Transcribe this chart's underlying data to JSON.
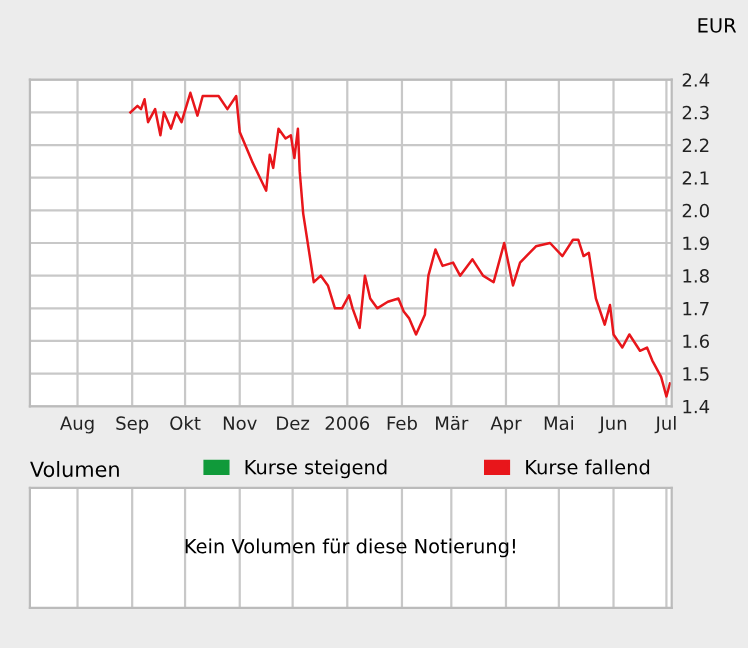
{
  "chart_data": [
    {
      "type": "line",
      "ylabel": "EUR",
      "x": [
        "2005-08-31",
        "2005-09-04",
        "2005-09-06",
        "2005-09-08",
        "2005-09-10",
        "2005-09-14",
        "2005-09-17",
        "2005-09-19",
        "2005-09-23",
        "2005-09-26",
        "2005-09-29",
        "2005-10-04",
        "2005-10-08",
        "2005-10-11",
        "2005-10-20",
        "2005-10-25",
        "2005-10-30",
        "2005-11-01",
        "2005-11-08",
        "2005-11-16",
        "2005-11-18",
        "2005-11-20",
        "2005-11-23",
        "2005-11-27",
        "2005-11-30",
        "2005-12-02",
        "2005-12-04",
        "2005-12-05",
        "2005-12-07",
        "2005-12-13",
        "2005-12-17",
        "2005-12-21",
        "2005-12-25",
        "2005-12-29",
        "2006-01-02",
        "2006-01-04",
        "2006-01-08",
        "2006-01-11",
        "2006-01-14",
        "2006-01-18",
        "2006-01-24",
        "2006-01-30",
        "2006-02-02",
        "2006-02-05",
        "2006-02-09",
        "2006-02-14",
        "2006-02-16",
        "2006-02-20",
        "2006-02-24",
        "2006-03-02",
        "2006-03-06",
        "2006-03-13",
        "2006-03-19",
        "2006-03-25",
        "2006-03-31",
        "2006-04-05",
        "2006-04-09",
        "2006-04-18",
        "2006-04-26",
        "2006-05-03",
        "2006-05-09",
        "2006-05-12",
        "2006-05-15",
        "2006-05-18",
        "2006-05-22",
        "2006-05-27",
        "2006-05-30",
        "2006-06-01",
        "2006-06-06",
        "2006-06-10",
        "2006-06-16",
        "2006-06-20",
        "2006-06-23",
        "2006-06-28",
        "2006-07-01",
        "2006-07-03"
      ],
      "series": [
        {
          "color": "#e8161b",
          "values": [
            2.3,
            2.32,
            2.31,
            2.34,
            2.27,
            2.31,
            2.23,
            2.3,
            2.25,
            2.3,
            2.27,
            2.36,
            2.29,
            2.35,
            2.35,
            2.31,
            2.35,
            2.24,
            2.15,
            2.06,
            2.17,
            2.13,
            2.25,
            2.22,
            2.23,
            2.16,
            2.25,
            2.12,
            1.99,
            1.78,
            1.8,
            1.77,
            1.7,
            1.7,
            1.74,
            1.7,
            1.64,
            1.8,
            1.73,
            1.7,
            1.72,
            1.73,
            1.69,
            1.67,
            1.62,
            1.68,
            1.8,
            1.88,
            1.83,
            1.84,
            1.8,
            1.85,
            1.8,
            1.78,
            1.9,
            1.77,
            1.84,
            1.89,
            1.9,
            1.86,
            1.91,
            1.91,
            1.86,
            1.87,
            1.73,
            1.65,
            1.71,
            1.62,
            1.58,
            1.62,
            1.57,
            1.58,
            1.54,
            1.49,
            1.43,
            1.47
          ]
        }
      ],
      "xlim": [
        "2005-07-05",
        "2006-07-04"
      ],
      "xticks": [
        {
          "value": "2005-08-01",
          "label": "Aug"
        },
        {
          "value": "2005-09-01",
          "label": "Sep"
        },
        {
          "value": "2005-10-01",
          "label": "Okt"
        },
        {
          "value": "2005-11-01",
          "label": "Nov"
        },
        {
          "value": "2005-12-01",
          "label": "Dez"
        },
        {
          "value": "2006-01-01",
          "label": "2006"
        },
        {
          "value": "2006-02-01",
          "label": "Feb"
        },
        {
          "value": "2006-03-01",
          "label": "Mär"
        },
        {
          "value": "2006-04-01",
          "label": "Apr"
        },
        {
          "value": "2006-05-01",
          "label": "Mai"
        },
        {
          "value": "2006-06-01",
          "label": "Jun"
        },
        {
          "value": "2006-07-01",
          "label": "Jul"
        }
      ],
      "ylim": [
        1.4,
        2.4
      ],
      "yticks": [
        1.4,
        1.5,
        1.6,
        1.7,
        1.8,
        1.9,
        {
          "value": 2.0,
          "label": "2.0"
        },
        2.1,
        2.2,
        2.3,
        2.4
      ],
      "grid": true,
      "legend": false,
      "line_style": "solid",
      "marker": "none"
    },
    {
      "type": "other",
      "title": "Volumen",
      "series": [
        {
          "name": "Kurse steigend",
          "color": "#109a3a"
        },
        {
          "name": "Kurse fallend",
          "color": "#e8161b"
        }
      ],
      "annotations": [
        "Kein Volumen für diese Notierung!"
      ],
      "legend": "top"
    }
  ]
}
